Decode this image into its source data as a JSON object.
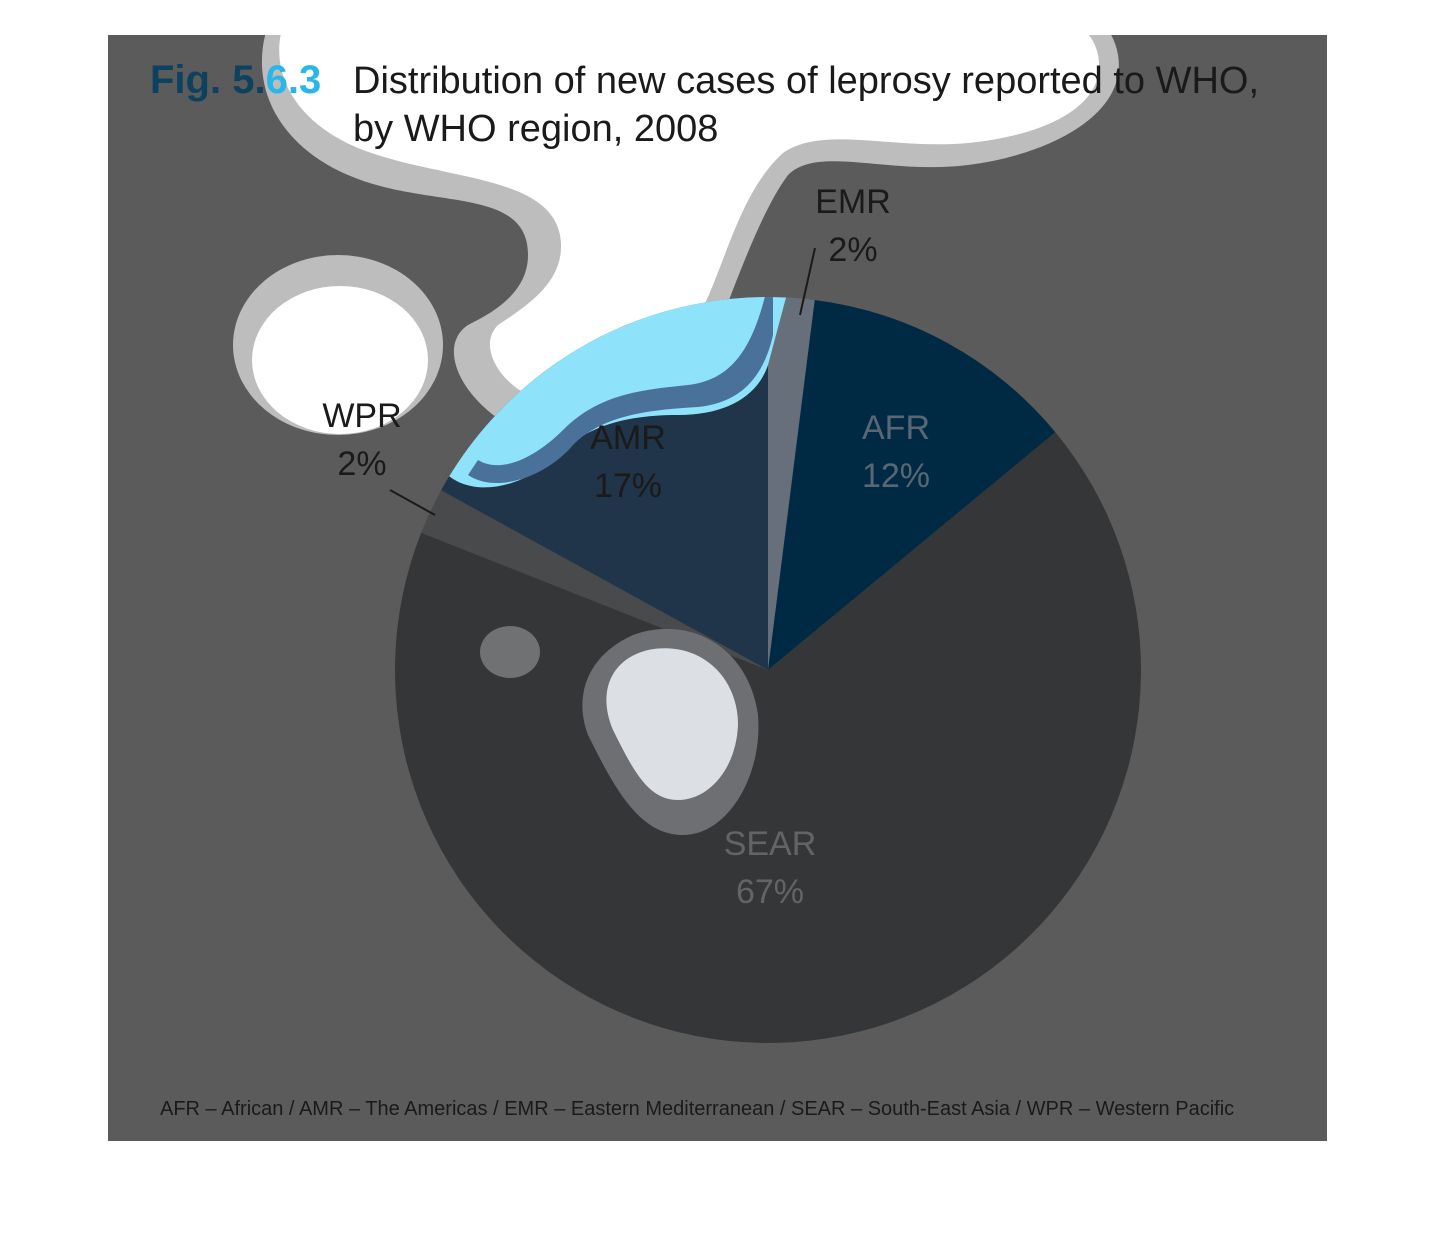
{
  "figure": {
    "number_prefix": "Fig. 5.",
    "number_suffix": "6.3",
    "title_line1": "Distribution of new cases of leprosy reported to WHO,",
    "title_line2": "by WHO region, 2008",
    "footnote": "AFR – African / AMR – The Americas / EMR – Eastern Mediterranean / SEAR – South-East Asia / WPR – Western Pacific",
    "colors": {
      "panel_background": "#5b5b5b",
      "number_dark": "#0d4160",
      "number_accent": "#29b6e8",
      "white_blob": "#ffffff",
      "blob_outline": "#bdbdbd",
      "light_blue": "#8ee3fb",
      "mid_blue": "#4a7199",
      "inner_blob": "#dcdfe3",
      "inner_blob_ring": "#6e6f72",
      "small_spot": "#707173"
    }
  },
  "chart_data": {
    "type": "pie",
    "title": "Distribution of new cases of leprosy reported to WHO, by WHO region, 2008",
    "unit": "%",
    "slices": [
      {
        "label": "EMR",
        "value": 2,
        "display": "2%",
        "color": "#67707a",
        "label_color": "#1a1a1a"
      },
      {
        "label": "AFR",
        "value": 12,
        "display": "12%",
        "color": "#002a44",
        "label_color": "#596773"
      },
      {
        "label": "SEAR",
        "value": 67,
        "display": "67%",
        "color": "#353638",
        "label_color": "#636466"
      },
      {
        "label": "WPR",
        "value": 2,
        "display": "2%",
        "color": "#484a4b",
        "label_color": "#1a1a1a"
      },
      {
        "label": "AMR",
        "value": 17,
        "display": "17%",
        "color": "#20344a",
        "label_color": "#1a1a1a"
      }
    ],
    "legend": "none"
  }
}
